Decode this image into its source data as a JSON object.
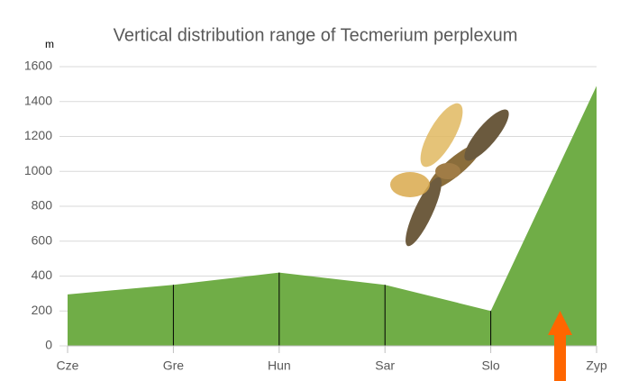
{
  "chart_data": {
    "type": "area",
    "title": "Vertical distribution range of Tecmerium perplexum",
    "y_axis_label": "m",
    "categories": [
      "Cze",
      "Gre",
      "Hun",
      "Sar",
      "Slo",
      "Zyp"
    ],
    "values": [
      295,
      350,
      420,
      350,
      200,
      1490
    ],
    "color": "#70ad47",
    "ylim": [
      0,
      1600
    ],
    "yticks": [
      0,
      200,
      400,
      600,
      800,
      1000,
      1200,
      1400,
      1600
    ],
    "grid": true
  }
}
